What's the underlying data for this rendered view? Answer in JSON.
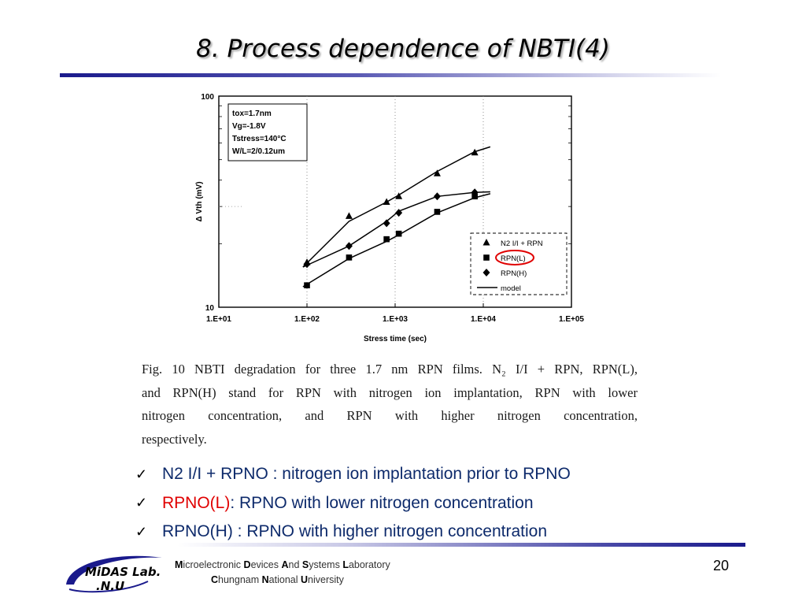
{
  "slide": {
    "title": "8. Process dependence of NBTI(4)",
    "page_number": "20",
    "caption_lines": [
      "Fig. 10 NBTI degradation for three 1.7 nm RPN films. N₂ I/I + RPN, RPN(L),",
      "and RPN(H) stand for RPN with nitrogen ion implantation, RPN with lower",
      "nitrogen concentration, and RPN with higher nitrogen concentration,",
      "respectively."
    ],
    "bullets": [
      {
        "check": "✓",
        "text": "N2 I/I + RPNO : nitrogen ion implantation prior to RPNO"
      },
      {
        "check": "✓",
        "highlight": "RPNO(L)",
        "text": " : RPNO with lower nitrogen concentration"
      },
      {
        "check": "✓",
        "text": "RPNO(H) : RPNO with higher nitrogen concentration"
      }
    ],
    "footer": {
      "logo_line1": "MiDAS Lab.",
      "logo_line2": ".N.U",
      "lab_parts": [
        {
          "cap": "M",
          "rest": "icroelectronic "
        },
        {
          "cap": "D",
          "rest": "evices "
        },
        {
          "cap": "A",
          "rest": "nd "
        },
        {
          "cap": "S",
          "rest": "ystems "
        },
        {
          "cap": "L",
          "rest": "aboratory"
        }
      ],
      "univ_parts": [
        {
          "cap": "C",
          "rest": "hungnam "
        },
        {
          "cap": "N",
          "rest": "ational "
        },
        {
          "cap": "U",
          "rest": "niversity"
        }
      ]
    },
    "colors": {
      "title_rule": "#1a1a8c",
      "bullet_text": "#0d2a6b",
      "highlight": "#e00000",
      "circle": "#e00000"
    }
  },
  "chart_data": {
    "type": "scatter",
    "title": "",
    "xlabel": "Stress time (sec)",
    "ylabel": "Δ Vth (mV)",
    "xscale": "log",
    "yscale": "log",
    "xlim": [
      10,
      100000
    ],
    "ylim": [
      10,
      100
    ],
    "x_ticks": [
      "1.E+01",
      "1.E+02",
      "1.E+03",
      "1.E+04",
      "1.E+05"
    ],
    "y_ticks": [
      "10",
      "100"
    ],
    "conditions": [
      "tox=1.7nm",
      "Vg=-1.8V",
      "Tstress=140°C",
      "W/L=2/0.12um"
    ],
    "legend_position": "bottom-right",
    "series": [
      {
        "name": "N2 I/I + RPN",
        "marker": "triangle",
        "x": [
          100,
          300,
          800,
          1100,
          3000,
          8000
        ],
        "y": [
          16.3,
          27,
          31.5,
          33.5,
          43,
          54
        ],
        "model_y": [
          15.5,
          25.5,
          31.5,
          34,
          44,
          54.5,
          57.5
        ]
      },
      {
        "name": "RPN(L)",
        "marker": "square",
        "x": [
          100,
          300,
          800,
          1100,
          3000,
          8000
        ],
        "y": [
          12.7,
          17.2,
          21,
          22.3,
          28.3,
          33.5
        ],
        "model_y": [
          12.5,
          17,
          20.5,
          22,
          28,
          33,
          34.5
        ]
      },
      {
        "name": "RPN(H)",
        "marker": "diamond",
        "x": [
          100,
          300,
          800,
          1100,
          3000,
          8000
        ],
        "y": [
          16,
          19.5,
          25,
          28,
          33.5,
          35
        ],
        "model_y": [
          15.5,
          19.5,
          25.5,
          28.5,
          33.5,
          35,
          35.2
        ]
      }
    ],
    "model_x": [
      90,
      300,
      800,
      1100,
      3000,
      8000,
      12000
    ],
    "model_label": "model",
    "highlighted_legend_entry": "RPN(L)"
  }
}
